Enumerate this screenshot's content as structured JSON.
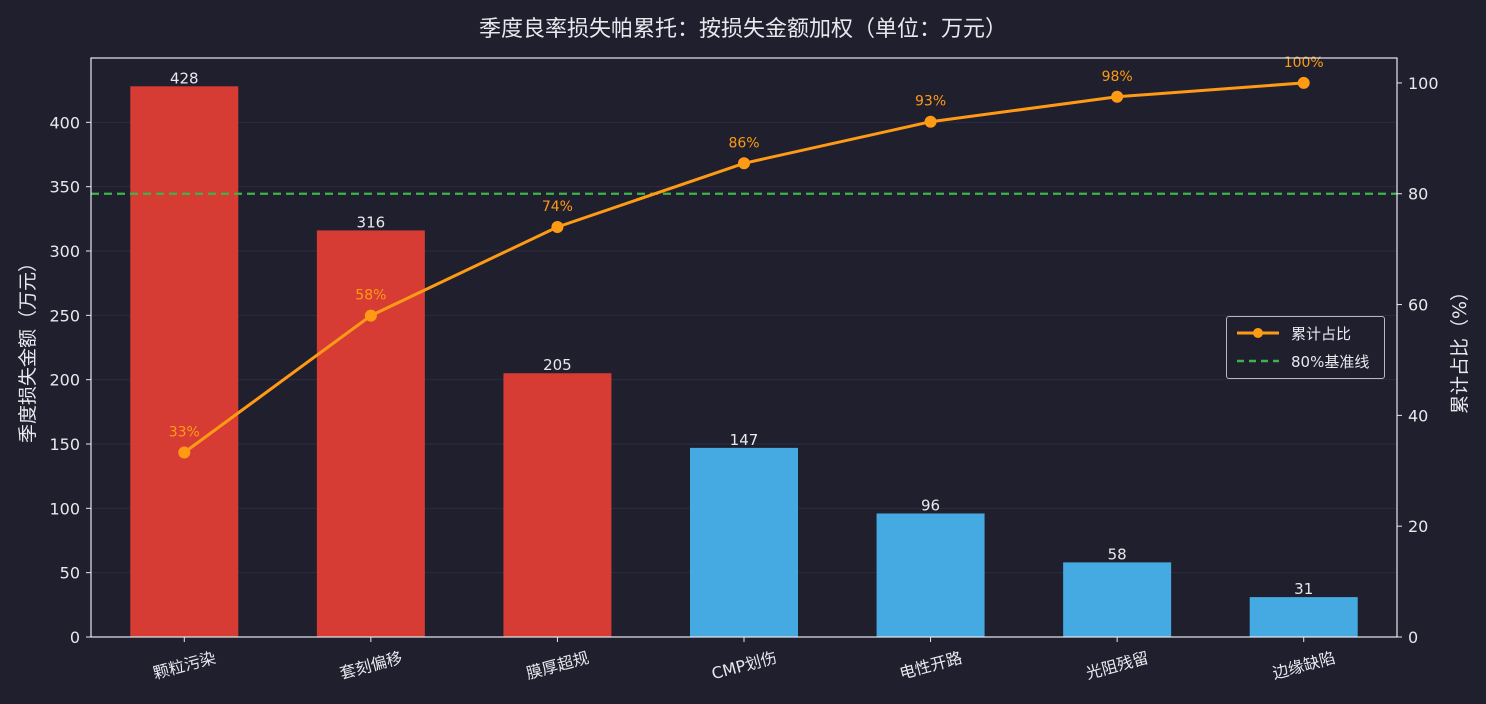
{
  "chart_data": {
    "type": "bar",
    "title": "季度良率损失帕累托：按损失金额加权（单位：万元）",
    "ylabel": "季度损失金额（万元）",
    "y2label": "累计占比（%）",
    "categories": [
      "颗粒污染",
      "套刻偏移",
      "膜厚超规",
      "CMP划伤",
      "电性开路",
      "光阻残留",
      "边缘缺陷"
    ],
    "series": [
      {
        "name": "季度损失金额",
        "type": "bar",
        "axis": "left",
        "values": [
          428,
          316,
          205,
          147,
          96,
          58,
          31
        ]
      },
      {
        "name": "累计占比",
        "type": "line",
        "axis": "right",
        "values": [
          33.3,
          58.0,
          74.0,
          85.5,
          93.0,
          97.5,
          100.0
        ],
        "labels": [
          "33%",
          "58%",
          "74%",
          "86%",
          "93%",
          "98%",
          "100%"
        ]
      }
    ],
    "bar_value_labels": [
      "428",
      "316",
      "205",
      "147",
      "96",
      "58",
      "31"
    ],
    "highlight_count": 3,
    "colors": {
      "highlight_bar": "#d63c34",
      "normal_bar": "#46aae2",
      "line": "#ff9a14",
      "threshold": "#3cb44b",
      "text": "#e8e8ee",
      "background": "#1f1f2e"
    },
    "ylim": [
      0,
      450
    ],
    "y2lim": [
      0,
      104.5
    ],
    "yticks": [
      0,
      50,
      100,
      150,
      200,
      250,
      300,
      350,
      400
    ],
    "y2ticks": [
      0,
      20,
      40,
      60,
      80,
      100
    ],
    "threshold": {
      "value": 80,
      "axis": "right",
      "label": "80%基准线"
    },
    "legend": {
      "position": "center-right",
      "entries": [
        "累计占比",
        "80%基准线"
      ]
    },
    "grid": true
  }
}
